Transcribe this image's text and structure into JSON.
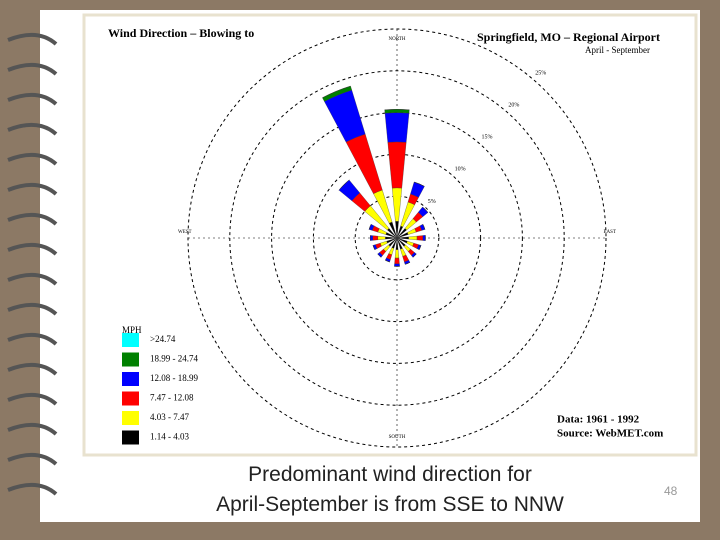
{
  "chart_data": {
    "type": "wind-rose",
    "title": "Wind Direction – Blowing to",
    "subtitle": "Springfield, MO – Regional Airport",
    "period": "April - September",
    "data_note": "Data: 1961 - 1992",
    "source": "Source: WebMET.com",
    "legend_title": "MPH",
    "categories": [
      "NORTH",
      null,
      null,
      null,
      "EAST",
      null,
      null,
      null,
      "SOUTH",
      null,
      null,
      null,
      "WEST",
      null,
      null,
      null
    ],
    "rlim": [
      0,
      25
    ],
    "rticks": [
      {
        "value": 5,
        "label": "5%"
      },
      {
        "value": 10,
        "label": "10%"
      },
      {
        "value": 15,
        "label": "15%"
      },
      {
        "value": 20,
        "label": "20%"
      },
      {
        "value": 25,
        "label": "25%"
      }
    ],
    "series": [
      {
        "name": ">24.74",
        "color": "#00ffff",
        "values": [
          0,
          0,
          0,
          0,
          0,
          0,
          0,
          0,
          0,
          0,
          0,
          0,
          0,
          0,
          0,
          0
        ]
      },
      {
        "name": "18.99 - 24.74",
        "color": "#008000",
        "values": [
          0.4,
          0,
          0,
          0,
          0,
          0,
          0,
          0,
          0,
          0,
          0,
          0,
          0,
          0,
          0,
          0.5
        ]
      },
      {
        "name": "12.08 - 18.99",
        "color": "#0000ff",
        "values": [
          3.5,
          1.5,
          0.8,
          0.4,
          0.3,
          0.3,
          0.3,
          0.3,
          0.3,
          0.3,
          0.3,
          0.3,
          0.3,
          0.4,
          2,
          5.5
        ]
      },
      {
        "name": "7.47 - 12.08",
        "color": "#ff0000",
        "values": [
          5.5,
          1,
          1,
          0.7,
          0.7,
          0.6,
          0.6,
          0.7,
          0.7,
          0.6,
          0.6,
          0.6,
          0.6,
          0.7,
          2,
          7
        ]
      },
      {
        "name": "4.03 - 7.47",
        "color": "#ffff00",
        "values": [
          4,
          3,
          1.5,
          1,
          1,
          0.8,
          0.8,
          0.9,
          1,
          0.8,
          0.8,
          0.8,
          0.9,
          1,
          3.5,
          4
        ]
      },
      {
        "name": "1.14 - 4.03",
        "color": "#000000",
        "values": [
          2,
          1.5,
          1.5,
          1.4,
          1.4,
          1.3,
          1.3,
          1.4,
          1.4,
          1.3,
          1.3,
          1.3,
          1.4,
          1.4,
          1.5,
          2
        ]
      }
    ]
  },
  "caption": [
    "Predominant wind direction for",
    "April-September is from SSE to NNW"
  ],
  "page_number": "48"
}
